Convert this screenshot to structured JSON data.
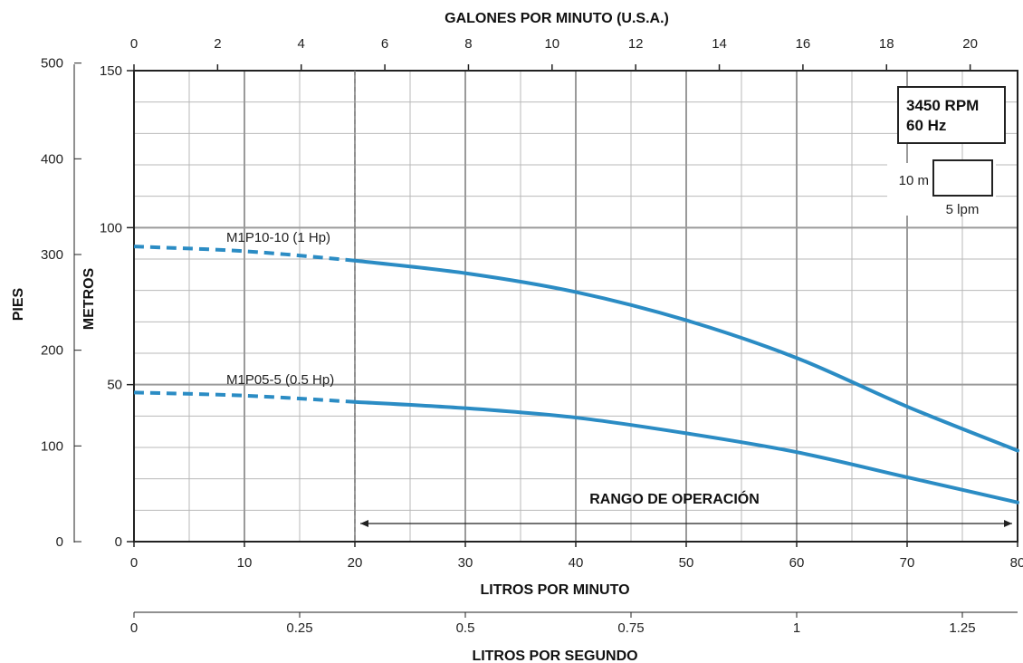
{
  "chart_data": {
    "type": "line",
    "x_primary": {
      "label": "LITROS POR MINUTO",
      "range": [
        0,
        80
      ],
      "ticks": [
        0,
        10,
        20,
        30,
        40,
        50,
        60,
        70,
        80
      ]
    },
    "x_top": {
      "label": "GALONES POR MINUTO (U.S.A.)",
      "ticks": [
        0,
        2,
        4,
        6,
        8,
        10,
        12,
        14,
        16,
        18,
        20
      ]
    },
    "x_bottom2": {
      "label": "LITROS POR SEGUNDO",
      "ticks": [
        0,
        0.25,
        0.5,
        0.75,
        1,
        1.25
      ]
    },
    "y_primary": {
      "label": "METROS",
      "range": [
        0,
        150
      ],
      "ticks": [
        0,
        50,
        100,
        150
      ]
    },
    "y_secondary": {
      "label": "PIES",
      "ticks": [
        0,
        100,
        200,
        300,
        400,
        500
      ]
    },
    "grid": true,
    "series": [
      {
        "name": "M1P10-10 (1 Hp)",
        "color": "#2b8cc4",
        "dashed_until_x": 20,
        "points": [
          [
            0,
            94
          ],
          [
            10,
            92.5
          ],
          [
            20,
            89.5
          ],
          [
            30,
            85.5
          ],
          [
            40,
            79.5
          ],
          [
            50,
            70.5
          ],
          [
            60,
            58.5
          ],
          [
            70,
            43
          ],
          [
            80,
            29
          ]
        ]
      },
      {
        "name": "M1P05-5 (0.5 Hp)",
        "color": "#2b8cc4",
        "dashed_until_x": 20,
        "points": [
          [
            0,
            47.5
          ],
          [
            10,
            46.5
          ],
          [
            20,
            44.5
          ],
          [
            30,
            42.5
          ],
          [
            40,
            39.5
          ],
          [
            50,
            34.5
          ],
          [
            60,
            28.5
          ],
          [
            70,
            20.5
          ],
          [
            80,
            12.5
          ]
        ]
      }
    ],
    "operating_range": {
      "label": "RANGO DE OPERACIÓN",
      "from": 20,
      "to": 80
    },
    "info_box": {
      "line1": "3450 RPM",
      "line2": "60 Hz"
    },
    "scale_box": {
      "vertical": "10 m",
      "horizontal": "5 lpm"
    }
  }
}
